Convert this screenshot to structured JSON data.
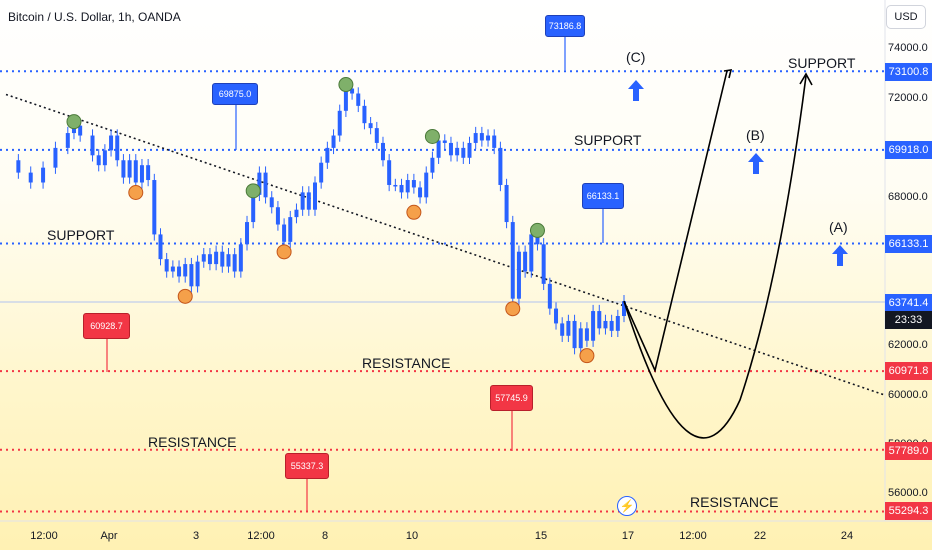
{
  "header": {
    "symbol_title": "Bitcoin / U.S. Dollar, 1h, OANDA",
    "currency": "USD"
  },
  "price_tags": {
    "level_top": "73100.8",
    "level_b": "69918.0",
    "level_a": "66133.1",
    "current_price": "63741.4",
    "countdown": "23:33",
    "resistance_1": "60971.8",
    "resistance_2": "57789.0",
    "resistance_3": "55294.3"
  },
  "callouts": {
    "top": "73186.8",
    "left_blue": "69875.0",
    "mid_blue": "66133.1",
    "left_red": "60928.7",
    "mid_red": "57745.9",
    "low_red": "55337.3"
  },
  "labels": {
    "support_upper_right": "SUPPORT",
    "support_mid": "SUPPORT",
    "support_left": "SUPPORT",
    "resistance_mid": "RESISTANCE",
    "resistance_left": "RESISTANCE",
    "resistance_low": "RESISTANCE",
    "wave_c": "(C)",
    "wave_b": "(B)",
    "wave_a": "(A)"
  },
  "colors": {
    "support_line": "#2962ff",
    "resistance_line": "#f23645",
    "candle_body": "#2962ff",
    "arrow": "#2962ff",
    "swing_high_marker": "#7fb06a",
    "swing_low_marker": "#f5a04a",
    "trendline": "#131722"
  },
  "chart_data": {
    "type": "candlestick",
    "title": "Bitcoin / U.S. Dollar, 1h, OANDA",
    "y_axis": {
      "unit": "USD",
      "range": [
        55000,
        74800
      ],
      "ticks": [
        56000,
        58000,
        60000,
        62000,
        64000,
        66000,
        68000,
        70000,
        72000,
        74000
      ],
      "tick_labels": [
        "56000.0",
        "58000.0",
        "60000.0",
        "62000.0",
        "64000.0",
        "66000.0",
        "68000.0",
        "70000.0",
        "72000.0",
        "74000.0"
      ]
    },
    "x_axis": {
      "tick_labels": [
        "12:00",
        "Apr",
        "3",
        "12:00",
        "8",
        "10",
        "15",
        "17",
        "12:00",
        "22",
        "24"
      ]
    },
    "price_path": [
      [
        0,
        69500
      ],
      [
        2,
        69000
      ],
      [
        4,
        68600
      ],
      [
        6,
        69200
      ],
      [
        8,
        70000
      ],
      [
        10,
        70600
      ],
      [
        11,
        70900
      ],
      [
        12,
        70500
      ],
      [
        14,
        69700
      ],
      [
        15,
        69300
      ],
      [
        16,
        69900
      ],
      [
        17,
        70500
      ],
      [
        18,
        69500
      ],
      [
        19,
        68800
      ],
      [
        20,
        69500
      ],
      [
        21,
        68600
      ],
      [
        22,
        69300
      ],
      [
        23,
        68700
      ],
      [
        24,
        66500
      ],
      [
        25,
        65500
      ],
      [
        26,
        65000
      ],
      [
        27,
        65200
      ],
      [
        28,
        64800
      ],
      [
        29,
        65300
      ],
      [
        30,
        64400
      ],
      [
        31,
        65400
      ],
      [
        32,
        65700
      ],
      [
        33,
        65300
      ],
      [
        34,
        65800
      ],
      [
        35,
        65200
      ],
      [
        36,
        65700
      ],
      [
        37,
        65000
      ],
      [
        38,
        66100
      ],
      [
        39,
        67000
      ],
      [
        40,
        68100
      ],
      [
        41,
        69000
      ],
      [
        42,
        68000
      ],
      [
        43,
        67600
      ],
      [
        44,
        66900
      ],
      [
        45,
        66200
      ],
      [
        46,
        67200
      ],
      [
        47,
        67500
      ],
      [
        48,
        68200
      ],
      [
        49,
        67500
      ],
      [
        50,
        68600
      ],
      [
        51,
        69400
      ],
      [
        52,
        70000
      ],
      [
        53,
        70500
      ],
      [
        54,
        71500
      ],
      [
        55,
        72400
      ],
      [
        56,
        72200
      ],
      [
        57,
        71700
      ],
      [
        58,
        71000
      ],
      [
        59,
        70800
      ],
      [
        60,
        70200
      ],
      [
        61,
        69500
      ],
      [
        62,
        68500
      ],
      [
        63,
        68500
      ],
      [
        64,
        68200
      ],
      [
        65,
        68700
      ],
      [
        66,
        68400
      ],
      [
        67,
        68000
      ],
      [
        68,
        69000
      ],
      [
        69,
        69600
      ],
      [
        70,
        70300
      ],
      [
        71,
        70200
      ],
      [
        72,
        69700
      ],
      [
        73,
        70000
      ],
      [
        74,
        69600
      ],
      [
        75,
        70200
      ],
      [
        76,
        70600
      ],
      [
        77,
        70300
      ],
      [
        78,
        70500
      ],
      [
        79,
        70000
      ],
      [
        80,
        68500
      ],
      [
        81,
        67000
      ],
      [
        82,
        63900
      ],
      [
        83,
        65800
      ],
      [
        84,
        65000
      ],
      [
        85,
        66500
      ],
      [
        86,
        66100
      ],
      [
        87,
        64500
      ],
      [
        88,
        63500
      ],
      [
        89,
        62900
      ],
      [
        90,
        62400
      ],
      [
        91,
        63000
      ],
      [
        92,
        61900
      ],
      [
        93,
        62700
      ],
      [
        94,
        62200
      ],
      [
        95,
        63400
      ],
      [
        96,
        62700
      ],
      [
        97,
        63000
      ],
      [
        98,
        62600
      ],
      [
        99,
        63200
      ],
      [
        100,
        63800
      ]
    ],
    "projection": [
      [
        100,
        63800
      ],
      [
        106,
        61000
      ],
      [
        120,
        74000
      ]
    ],
    "projection_2": [
      [
        100,
        63800
      ],
      [
        111,
        58000
      ],
      [
        130,
        73700
      ]
    ],
    "trendline": [
      [
        0,
        72000
      ],
      [
        192,
        60000
      ]
    ],
    "support_levels": [
      73100.8,
      69918.0,
      66133.1
    ],
    "resistance_levels": [
      60971.8,
      57789.0,
      55294.3
    ],
    "current_price": 63741.4,
    "swing_highs": [
      [
        11,
        70900
      ],
      [
        40,
        68100
      ],
      [
        55,
        72400
      ],
      [
        69,
        70300
      ],
      [
        86,
        66500
      ]
    ],
    "swing_lows": [
      [
        21,
        68600
      ],
      [
        29,
        64400
      ],
      [
        45,
        66200
      ],
      [
        66,
        67800
      ],
      [
        82,
        63900
      ],
      [
        94,
        62000
      ]
    ]
  }
}
